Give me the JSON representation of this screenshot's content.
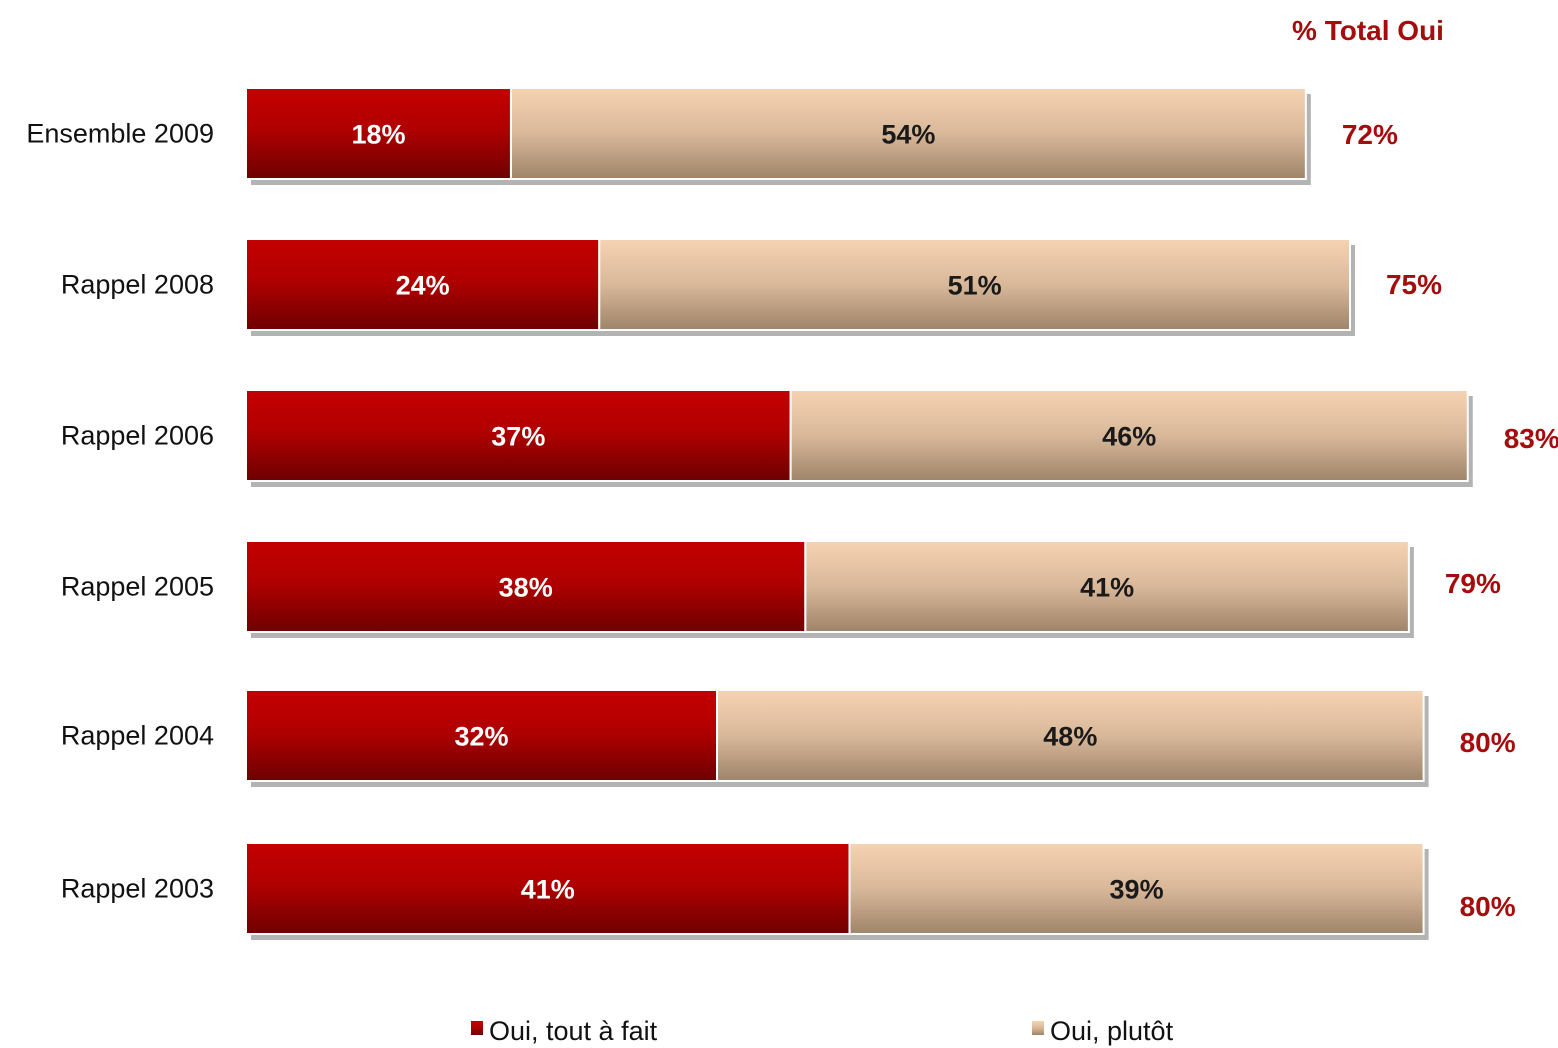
{
  "chart_data": {
    "type": "bar",
    "orientation": "horizontal",
    "stacked": true,
    "categories": [
      "Ensemble 2009",
      "Rappel 2008",
      "Rappel 2006",
      "Rappel 2005",
      "Rappel 2004",
      "Rappel 2003"
    ],
    "series": [
      {
        "name": "Oui, tout à fait",
        "values": [
          18,
          24,
          37,
          38,
          32,
          41
        ],
        "color": "#b50000"
      },
      {
        "name": "Oui, plutôt",
        "values": [
          54,
          51,
          46,
          41,
          48,
          39
        ],
        "color": "#e3c3a3"
      }
    ],
    "value_labels": [
      [
        "18%",
        "24%",
        "37%",
        "38%",
        "32%",
        "41%"
      ],
      [
        "54%",
        "51%",
        "46%",
        "41%",
        "48%",
        "39%"
      ]
    ],
    "totals": {
      "header": "% Total Oui",
      "values": [
        72,
        75,
        83,
        79,
        80,
        80
      ],
      "labels": [
        "72%",
        "75%",
        "83%",
        "79%",
        "80%",
        "80%"
      ],
      "color": "#a50d0d"
    },
    "xlim": [
      0,
      100
    ],
    "grid": false,
    "legend_position": "bottom"
  }
}
